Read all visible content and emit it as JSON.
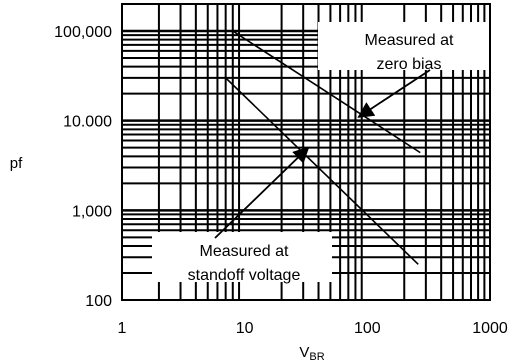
{
  "chart_data": {
    "type": "line",
    "title": "",
    "xlabel": "V",
    "xlabel_sub": "BR",
    "ylabel": "pf",
    "xscale": "log",
    "yscale": "log",
    "xlim": [
      1,
      1000
    ],
    "ylim": [
      100,
      200000
    ],
    "grid": true,
    "x_ticks": [
      {
        "value": 1,
        "label": "1"
      },
      {
        "value": 10,
        "label": "10"
      },
      {
        "value": 100,
        "label": "100"
      },
      {
        "value": 1000,
        "label": "1000"
      }
    ],
    "y_ticks": [
      {
        "value": 100,
        "label": "100"
      },
      {
        "value": 1000,
        "label": "1,000"
      },
      {
        "value": 10000,
        "label": "10.000"
      },
      {
        "value": 100000,
        "label": "100,000"
      }
    ],
    "series": [
      {
        "x": [
          8,
          270
        ],
        "y": [
          100000,
          4400
        ]
      },
      {
        "x": [
          7,
          260
        ],
        "y": [
          30000,
          250
        ]
      }
    ],
    "annotations": [
      {
        "lines": [
          "Measured at",
          "zero bias"
        ],
        "arrow_to": {
          "x": 85,
          "y": 11000
        }
      },
      {
        "lines": [
          "Measured at",
          "standoff voltage"
        ],
        "arrow_to": {
          "x": 33,
          "y": 5000
        }
      }
    ]
  }
}
